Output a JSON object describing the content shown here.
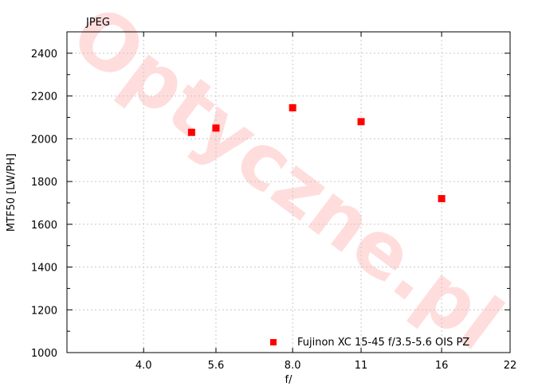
{
  "watermark": "Optyczne.pl",
  "chart_data": {
    "type": "scatter",
    "title": "JPEG",
    "xlabel": "f/",
    "ylabel": "MTF50 [LW/PH]",
    "x_scale": "log2",
    "x_ticks": [
      {
        "value": 4.0,
        "label": "4.0"
      },
      {
        "value": 5.6,
        "label": "5.6"
      },
      {
        "value": 8.0,
        "label": "8.0"
      },
      {
        "value": 11,
        "label": "11"
      },
      {
        "value": 16,
        "label": "16"
      },
      {
        "value": 22,
        "label": "22"
      }
    ],
    "xlim": [
      2.8,
      22
    ],
    "ylim": [
      1000,
      2500
    ],
    "y_ticks": [
      1000,
      1200,
      1400,
      1600,
      1800,
      2000,
      2200,
      2400
    ],
    "grid": true,
    "legend_position": "bottom-right",
    "series": [
      {
        "name": "Fujinon XC 15-45 f/3.5-5.6 OIS PZ",
        "color": "#ff0000",
        "points": [
          {
            "x": 5.0,
            "y": 2030
          },
          {
            "x": 5.6,
            "y": 2050
          },
          {
            "x": 8.0,
            "y": 2145
          },
          {
            "x": 11,
            "y": 2080
          },
          {
            "x": 16,
            "y": 1720
          }
        ]
      }
    ]
  }
}
